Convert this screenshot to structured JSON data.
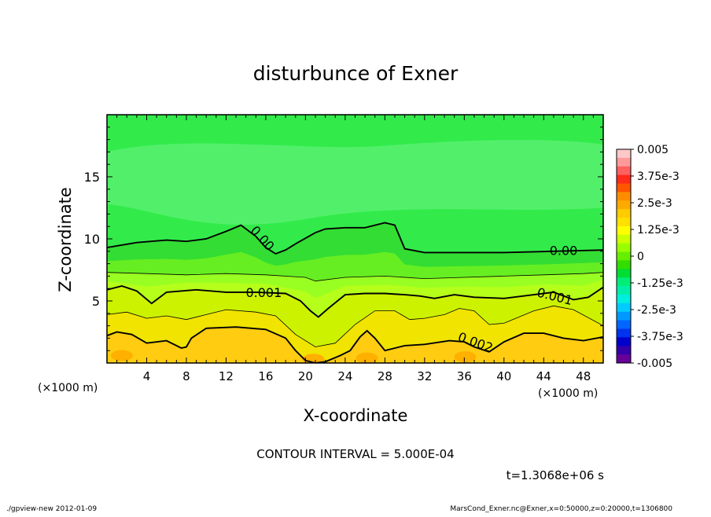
{
  "chart_data": {
    "type": "contour",
    "title": "disturbunce of Exner",
    "xlabel": "X-coordinate",
    "ylabel": "Z-coordinate",
    "x_unit_left": "(×1000 m)",
    "x_unit_right": "(×1000 m)",
    "xlim": [
      0,
      50
    ],
    "ylim": [
      0,
      20
    ],
    "x_ticks": [
      4,
      8,
      12,
      16,
      20,
      24,
      28,
      32,
      36,
      40,
      44,
      48
    ],
    "y_ticks": [
      5,
      10,
      15
    ],
    "contour_interval_text": "CONTOUR INTERVAL = 5.000E-04",
    "time_text": "t=1.3068e+06 s",
    "contour_labels": [
      {
        "text": "0.00",
        "x": 15.6,
        "z": 10.0,
        "angle": 48
      },
      {
        "text": "0.00",
        "x": 46.0,
        "z": 9.0,
        "angle": 0
      },
      {
        "text": "0.001",
        "x": 15.8,
        "z": 5.6,
        "angle": 0
      },
      {
        "text": "0.001",
        "x": 45.1,
        "z": 5.3,
        "angle": 14
      },
      {
        "text": "0.002",
        "x": 37.1,
        "z": 1.6,
        "angle": 20
      }
    ],
    "contours": [
      {
        "level": 0.0,
        "major": true,
        "x": [
          0,
          3,
          6,
          8,
          10,
          12,
          13.5,
          15,
          16,
          17,
          18,
          19,
          21,
          22,
          24,
          26,
          28,
          29,
          30,
          32,
          35,
          40,
          45,
          50
        ],
        "z": [
          9.3,
          9.7,
          9.9,
          9.8,
          10.0,
          10.6,
          11.1,
          10.2,
          9.3,
          8.8,
          9.1,
          9.6,
          10.5,
          10.8,
          10.9,
          10.9,
          11.3,
          11.1,
          9.2,
          8.9,
          8.9,
          8.9,
          9.0,
          9.1
        ]
      },
      {
        "level": 0.0005,
        "major": false,
        "x": [
          0,
          4,
          8,
          12,
          16,
          20,
          21,
          24,
          28,
          32,
          36,
          40,
          44,
          48,
          50
        ],
        "z": [
          7.3,
          7.2,
          7.1,
          7.2,
          7.1,
          6.9,
          6.6,
          6.9,
          7.0,
          6.8,
          6.9,
          7.0,
          7.1,
          7.2,
          7.3
        ]
      },
      {
        "level": 0.001,
        "major": true,
        "x": [
          0,
          1.5,
          3,
          4.5,
          6,
          9,
          12,
          15,
          18,
          19.5,
          20.5,
          21.3,
          22.3,
          24,
          26,
          28,
          30,
          31.5,
          33,
          35,
          37,
          40,
          43,
          45,
          47,
          48.5,
          50
        ],
        "z": [
          5.9,
          6.2,
          5.8,
          4.8,
          5.7,
          5.9,
          5.7,
          5.7,
          5.6,
          5.0,
          4.2,
          3.7,
          4.4,
          5.5,
          5.6,
          5.6,
          5.5,
          5.4,
          5.2,
          5.5,
          5.3,
          5.2,
          5.5,
          5.7,
          5.1,
          5.3,
          6.1
        ]
      },
      {
        "level": 0.0015,
        "major": false,
        "x": [
          0,
          2,
          4,
          6,
          8,
          10,
          12,
          15,
          17,
          19,
          21,
          23,
          25,
          27,
          29,
          30.5,
          32,
          34,
          35.5,
          37,
          38.5,
          40,
          43,
          45,
          47,
          50
        ],
        "z": [
          3.9,
          4.1,
          3.6,
          3.8,
          3.5,
          3.9,
          4.3,
          4.1,
          3.8,
          2.3,
          1.3,
          1.6,
          3.1,
          4.2,
          4.2,
          3.5,
          3.6,
          3.9,
          4.4,
          4.2,
          3.1,
          3.2,
          4.2,
          4.6,
          4.3,
          3.0
        ]
      },
      {
        "level": 0.002,
        "major": true,
        "x": [
          0,
          1,
          2.5,
          4,
          6,
          7.5,
          8,
          8.5,
          10,
          13,
          16,
          18,
          19,
          20,
          21,
          22,
          23.5,
          24.5,
          25.5,
          26.2,
          27,
          28,
          30,
          32,
          34.5,
          36,
          37,
          38.5,
          40,
          42,
          44,
          46,
          48,
          50
        ],
        "z": [
          2.2,
          2.5,
          2.3,
          1.6,
          1.8,
          1.2,
          1.3,
          2.0,
          2.8,
          2.9,
          2.7,
          2.0,
          1.0,
          0.2,
          0.0,
          0.1,
          0.6,
          1.0,
          2.1,
          2.6,
          2.0,
          1.0,
          1.4,
          1.5,
          1.8,
          1.7,
          1.3,
          0.9,
          1.7,
          2.4,
          2.4,
          2.0,
          1.8,
          2.1
        ]
      }
    ],
    "colorbar": {
      "labels": [
        "0.005",
        "3.75e-3",
        "2.5e-3",
        "1.25e-3",
        "0",
        "-1.25e-3",
        "-2.5e-3",
        "-3.75e-3",
        "-0.005"
      ],
      "colors_top_to_bottom": [
        "#ffc8c8",
        "#ff9a9a",
        "#ff6060",
        "#ff2a1a",
        "#ff5500",
        "#ff8c00",
        "#ffaa00",
        "#ffcc00",
        "#ffe000",
        "#ffff00",
        "#ccff00",
        "#99ff00",
        "#66ee00",
        "#33dd00",
        "#00dd33",
        "#00ee77",
        "#00eeaa",
        "#00eedd",
        "#00ccff",
        "#0099ff",
        "#0066ff",
        "#0033ee",
        "#0000cc",
        "#3300aa",
        "#660099"
      ]
    },
    "field_colors": {
      "top": "#32eb4b",
      "top_light": "#52f06a",
      "band_0": "#33dd33",
      "band_1": "#66ee22",
      "band_2": "#99ff22",
      "band_3": "#ccf200",
      "band_4": "#f0e400",
      "band_5": "#ffcc11"
    }
  },
  "footer": {
    "left": "./gpview-new   2012-01-09",
    "right": "MarsCond_Exner.nc@Exner,x=0:50000,z=0:20000,t=1306800"
  }
}
